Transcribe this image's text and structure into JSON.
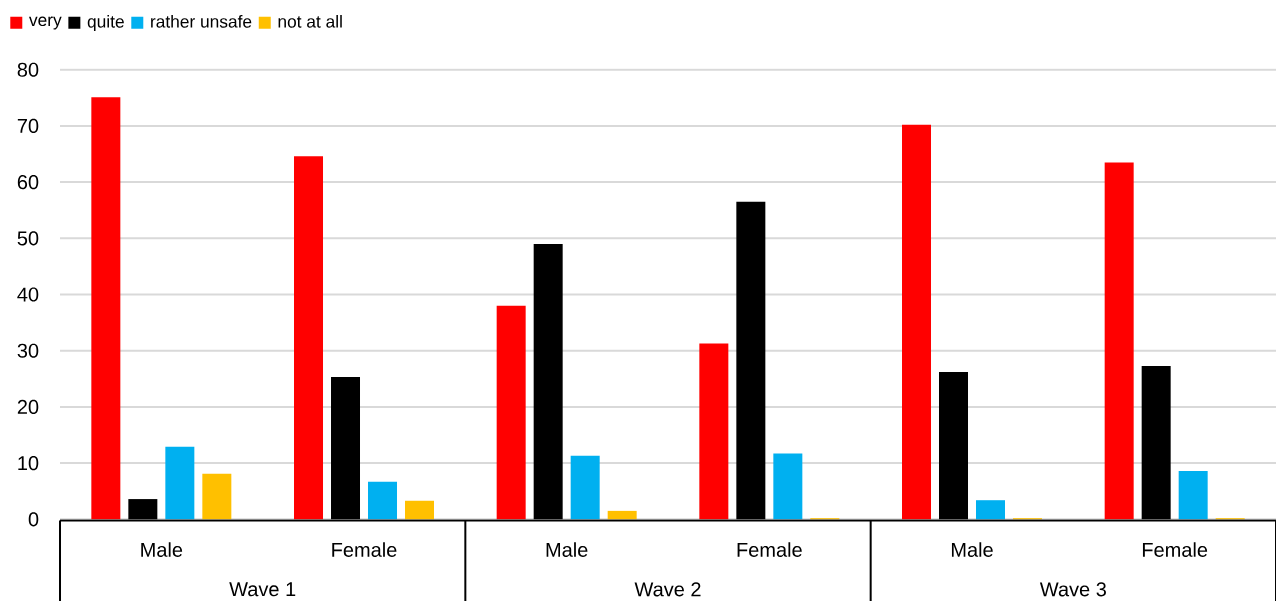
{
  "chart_data": {
    "type": "bar",
    "categories": [
      "Male",
      "Female",
      "Male",
      "Female",
      "Male",
      "Female"
    ],
    "annotations": [
      "Wave 1",
      "Wave 2",
      "Wave 3"
    ],
    "series": [
      {
        "name": "very",
        "color": "#ff0000",
        "values": [
          75.1,
          64.6,
          38.0,
          31.3,
          70.2,
          63.5
        ]
      },
      {
        "name": "quite",
        "color": "#000000",
        "values": [
          3.6,
          25.3,
          49.0,
          56.5,
          26.2,
          27.3
        ]
      },
      {
        "name": "rather unsafe",
        "color": "#00b0f0",
        "values": [
          12.9,
          6.7,
          11.3,
          11.7,
          3.4,
          8.6
        ]
      },
      {
        "name": "not at all",
        "color": "#ffc000",
        "values": [
          8.1,
          3.3,
          1.5,
          0.2,
          0.2,
          0.2
        ]
      }
    ],
    "ylim": [
      0,
      80
    ],
    "yticks": [
      0,
      10,
      20,
      30,
      40,
      50,
      60,
      70,
      80
    ],
    "grid": "y",
    "legend": "top left"
  }
}
